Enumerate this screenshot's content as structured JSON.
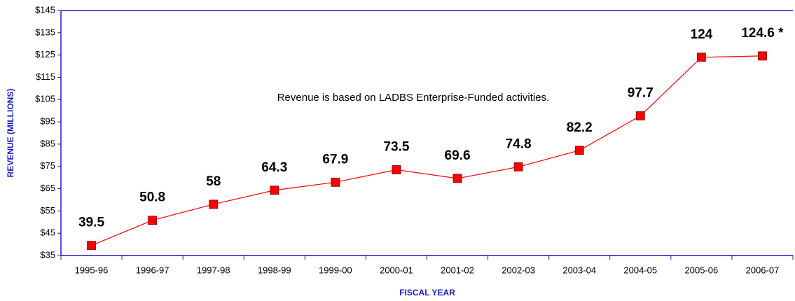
{
  "chart_data": {
    "type": "line",
    "annotation": "Revenue is based on LADBS Enterprise-Funded activities.",
    "x_label": "FISCAL YEAR",
    "y_label": "REVENUE (MILLIONS)",
    "categories": [
      "1995-96",
      "1996-97",
      "1997-98",
      "1998-99",
      "1999-00",
      "2000-01",
      "2001-02",
      "2002-03",
      "2003-04",
      "2004-05",
      "2005-06",
      "2006-07"
    ],
    "values": [
      39.5,
      50.8,
      58,
      64.3,
      67.9,
      73.5,
      69.6,
      74.8,
      82.2,
      97.7,
      124,
      124.6
    ],
    "value_labels": [
      "39.5",
      "50.8",
      "58",
      "64.3",
      "67.9",
      "73.5",
      "69.6",
      "74.8",
      "82.2",
      "97.7",
      "124",
      "124.6 *"
    ],
    "color": "#ff0000",
    "ylim": [
      35,
      145
    ],
    "yticks": [
      {
        "value": 35,
        "label": "$35"
      },
      {
        "value": 45,
        "label": "$45"
      },
      {
        "value": 55,
        "label": "$55"
      },
      {
        "value": 65,
        "label": "$65"
      },
      {
        "value": 75,
        "label": "$75"
      },
      {
        "value": 85,
        "label": "$85"
      },
      {
        "value": 95,
        "label": "$95"
      },
      {
        "value": 105,
        "label": "$105"
      },
      {
        "value": 115,
        "label": "$115"
      },
      {
        "value": 125,
        "label": "$125"
      },
      {
        "value": 135,
        "label": "$135"
      },
      {
        "value": 145,
        "label": "$145"
      }
    ]
  }
}
